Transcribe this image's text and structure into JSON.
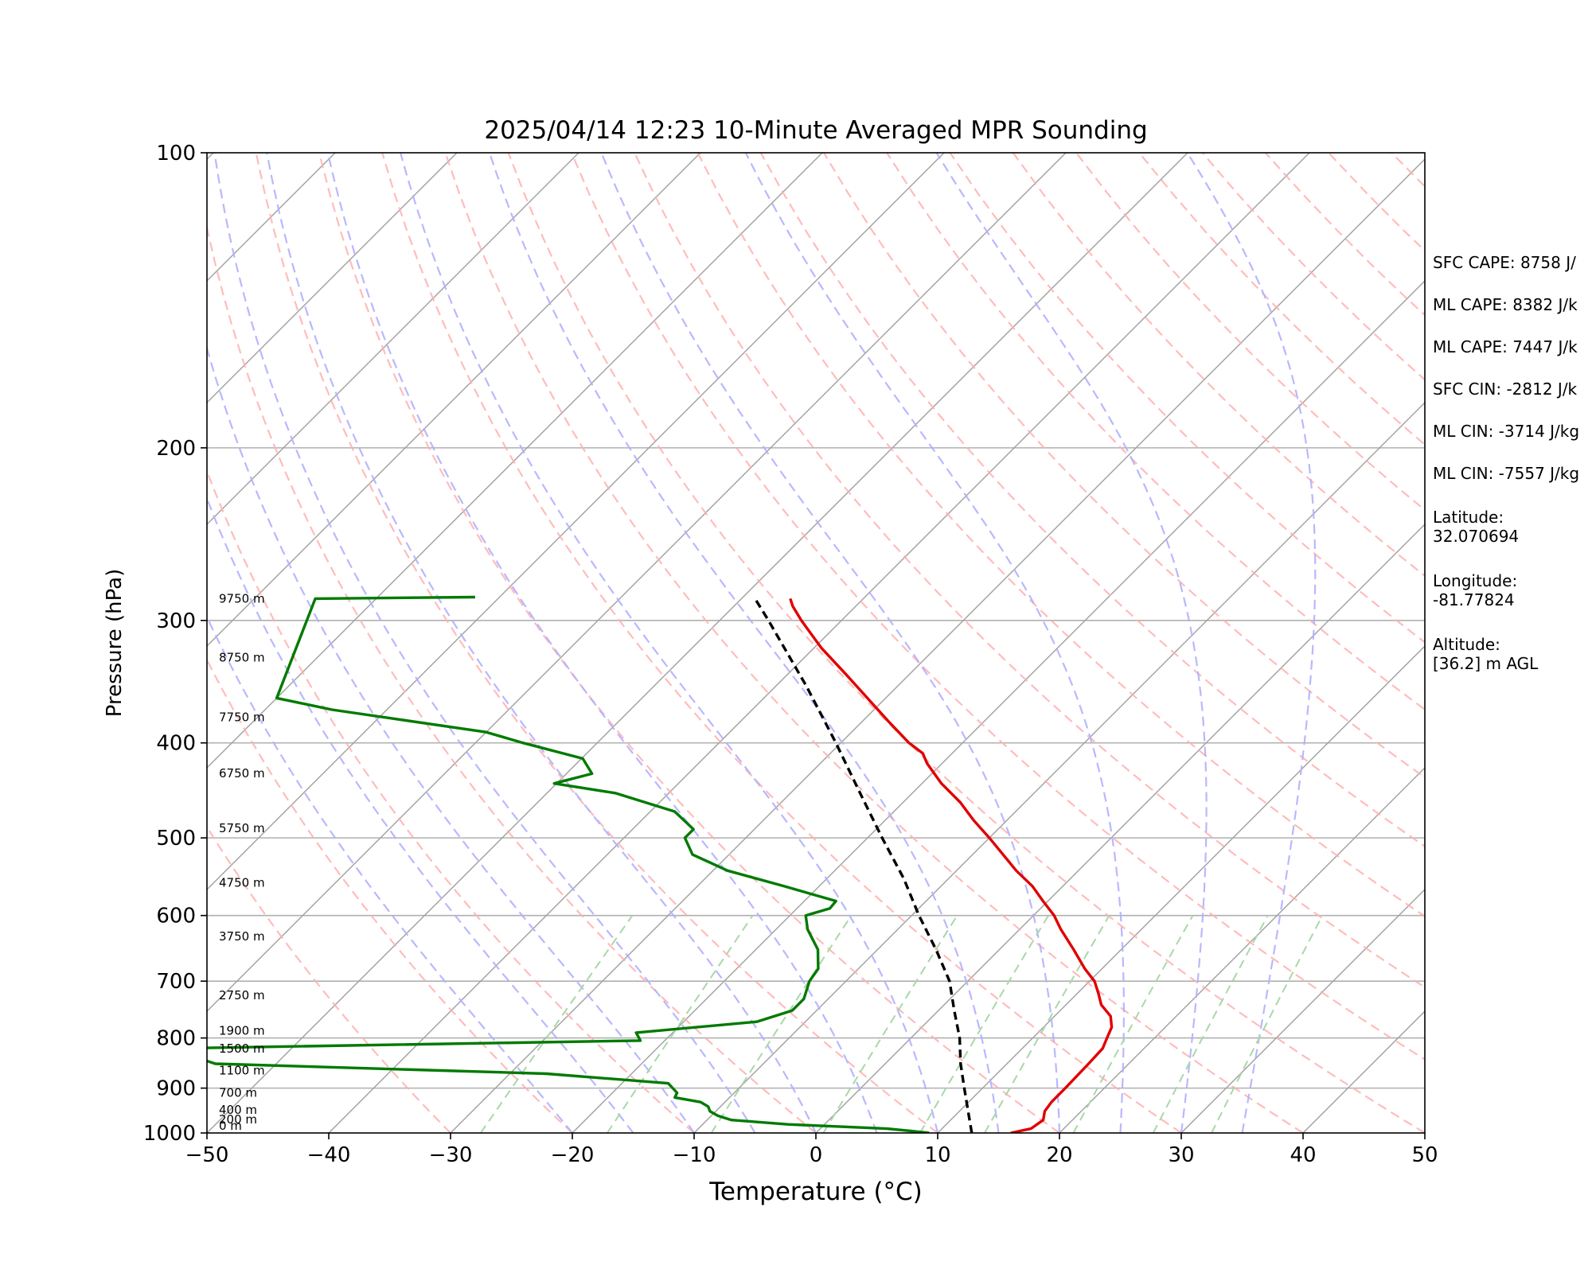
{
  "chart_data": {
    "type": "line",
    "subtype": "skew-t log-p sounding",
    "title": "2025/04/14 12:23 10-Minute Averaged MPR Sounding",
    "xlabel": "Temperature (°C)",
    "ylabel": "Pressure (hPa)",
    "xlim": [
      -50,
      50
    ],
    "ylim": [
      1000,
      100
    ],
    "y_scale": "log",
    "x_ticks": [
      -50,
      -40,
      -30,
      -20,
      -10,
      0,
      10,
      20,
      30,
      40,
      50
    ],
    "x_tick_labels": [
      "−50",
      "−40",
      "−30",
      "−20",
      "−10",
      "0",
      "10",
      "20",
      "30",
      "40",
      "50"
    ],
    "y_ticks": [
      1000,
      900,
      800,
      700,
      600,
      500,
      400,
      300,
      200,
      100
    ],
    "y_tick_labels": [
      "1000",
      "900",
      "800",
      "700",
      "600",
      "500",
      "400",
      "300",
      "200",
      "100"
    ],
    "grid": true,
    "height_labels": [
      {
        "p": 1000,
        "text": "0 m"
      },
      {
        "p": 985,
        "text": "200 m"
      },
      {
        "p": 963,
        "text": "400 m"
      },
      {
        "p": 925,
        "text": "700 m"
      },
      {
        "p": 878,
        "text": "1100 m"
      },
      {
        "p": 834,
        "text": "1500 m"
      },
      {
        "p": 800,
        "text": "1900 m"
      },
      {
        "p": 736,
        "text": "2750 m"
      },
      {
        "p": 641,
        "text": "3750 m"
      },
      {
        "p": 565,
        "text": "4750 m"
      },
      {
        "p": 497,
        "text": "5750 m"
      },
      {
        "p": 437,
        "text": "6750 m"
      },
      {
        "p": 383,
        "text": "7750 m"
      },
      {
        "p": 333,
        "text": "8750 m"
      },
      {
        "p": 290,
        "text": "9750 m"
      }
    ],
    "series": [
      {
        "role": "temperature",
        "color": "#e00000",
        "points": [
          [
            1000,
            16.0
          ],
          [
            990,
            17.3
          ],
          [
            970,
            17.6
          ],
          [
            950,
            17.0
          ],
          [
            930,
            16.8
          ],
          [
            900,
            16.8
          ],
          [
            850,
            16.7
          ],
          [
            820,
            16.6
          ],
          [
            800,
            16.1
          ],
          [
            780,
            15.6
          ],
          [
            760,
            14.6
          ],
          [
            740,
            12.9
          ],
          [
            720,
            11.7
          ],
          [
            700,
            10.4
          ],
          [
            680,
            8.6
          ],
          [
            650,
            6.1
          ],
          [
            620,
            3.4
          ],
          [
            600,
            1.7
          ],
          [
            580,
            -0.4
          ],
          [
            560,
            -2.5
          ],
          [
            540,
            -5.1
          ],
          [
            520,
            -7.5
          ],
          [
            500,
            -10.0
          ],
          [
            480,
            -12.7
          ],
          [
            460,
            -15.3
          ],
          [
            440,
            -18.4
          ],
          [
            420,
            -21.2
          ],
          [
            410,
            -22.4
          ],
          [
            400,
            -24.4
          ],
          [
            380,
            -27.9
          ],
          [
            360,
            -31.5
          ],
          [
            340,
            -35.3
          ],
          [
            320,
            -39.4
          ],
          [
            300,
            -43.3
          ],
          [
            290,
            -45.2
          ],
          [
            285,
            -46.0
          ]
        ]
      },
      {
        "role": "dewpoint",
        "color": "#007a00",
        "points": [
          [
            1000,
            9.3
          ],
          [
            995,
            7.5
          ],
          [
            990,
            5.5
          ],
          [
            980,
            -3.0
          ],
          [
            970,
            -8.0
          ],
          [
            960,
            -9.5
          ],
          [
            950,
            -10.5
          ],
          [
            940,
            -11.0
          ],
          [
            930,
            -12.0
          ],
          [
            920,
            -14.5
          ],
          [
            910,
            -14.7
          ],
          [
            890,
            -16.2
          ],
          [
            870,
            -27.0
          ],
          [
            850,
            -55.0
          ],
          [
            820,
            -60.0
          ],
          [
            805,
            -22.0
          ],
          [
            790,
            -23.0
          ],
          [
            770,
            -14.0
          ],
          [
            750,
            -12.0
          ],
          [
            730,
            -12.0
          ],
          [
            700,
            -13.0
          ],
          [
            680,
            -13.3
          ],
          [
            650,
            -14.9
          ],
          [
            620,
            -17.4
          ],
          [
            600,
            -18.7
          ],
          [
            590,
            -17.3
          ],
          [
            580,
            -17.4
          ],
          [
            560,
            -22.9
          ],
          [
            540,
            -28.8
          ],
          [
            520,
            -33.0
          ],
          [
            500,
            -35.0
          ],
          [
            490,
            -35.0
          ],
          [
            470,
            -38.0
          ],
          [
            450,
            -44.4
          ],
          [
            440,
            -50.2
          ],
          [
            430,
            -47.9
          ],
          [
            415,
            -49.9
          ],
          [
            400,
            -56.1
          ],
          [
            390,
            -60.0
          ],
          [
            370,
            -74.5
          ],
          [
            360,
            -80.0
          ],
          [
            285,
            -85.0
          ],
          [
            284,
            -72.0
          ]
        ]
      },
      {
        "role": "parcel",
        "color": "#000000",
        "style": "dashed",
        "points": [
          [
            1000,
            12.8
          ],
          [
            950,
            10.7
          ],
          [
            900,
            8.5
          ],
          [
            850,
            6.2
          ],
          [
            800,
            4.0
          ],
          [
            750,
            1.3
          ],
          [
            700,
            -1.5
          ],
          [
            650,
            -5.2
          ],
          [
            600,
            -9.4
          ],
          [
            550,
            -13.7
          ],
          [
            500,
            -18.8
          ],
          [
            450,
            -24.3
          ],
          [
            400,
            -30.4
          ],
          [
            350,
            -37.5
          ],
          [
            300,
            -46.0
          ],
          [
            285,
            -48.9
          ]
        ]
      }
    ],
    "background_lines": [
      {
        "role": "isotherms",
        "color": "#a0a0a0"
      },
      {
        "role": "dry adiabats",
        "color": "#ffb0b0",
        "style": "dashed"
      },
      {
        "role": "moist adiabats",
        "color": "#b0b0ff",
        "style": "dashed"
      },
      {
        "role": "mixing ratio lines",
        "color": "#a8d8a8",
        "style": "dashed"
      }
    ]
  },
  "info": {
    "sfc_cape": "SFC CAPE: 8758 J/",
    "ml_cape_1": "ML CAPE: 8382 J/k",
    "ml_cape_2": "ML CAPE: 7447 J/k",
    "sfc_cin": "SFC CIN: -2812 J/k",
    "ml_cin_1": "ML CIN: -3714 J/kg",
    "ml_cin_2": "ML CIN: -7557 J/kg",
    "latitude": "Latitude:\n32.070694",
    "longitude": "Longitude:\n-81.77824",
    "altitude": "Altitude:\n[36.2] m AGL"
  }
}
